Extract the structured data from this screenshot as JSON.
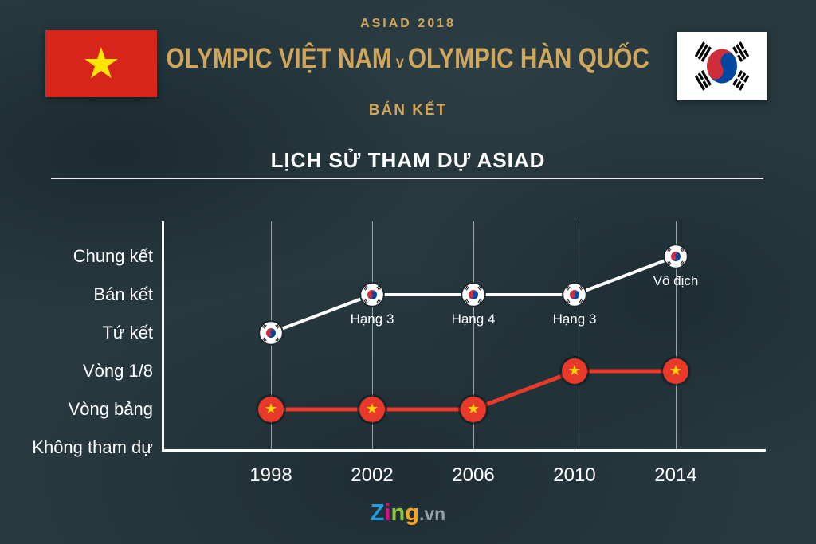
{
  "header": {
    "event": "ASIAD 2018",
    "team_home": "OLYMPIC VIỆT NAM",
    "versus": "v",
    "team_away": "OLYMPIC HÀN QUỐC",
    "stage": "BÁN KẾT"
  },
  "flags": {
    "home": "vietnam-flag",
    "away": "south-korea-flag"
  },
  "chart_data": {
    "type": "line",
    "title": "LỊCH SỬ THAM DỰ ASIAD",
    "x": [
      1998,
      2002,
      2006,
      2010,
      2014
    ],
    "y_categories": [
      "Chung kết",
      "Bán kết",
      "Tứ kết",
      "Vòng 1/8",
      "Vòng bảng",
      "Không tham dự"
    ],
    "grid": true,
    "legend": "none",
    "series": [
      {
        "name": "Olympic Hàn Quốc",
        "color": "#ffffff",
        "marker": "south-korea-flag-marker",
        "values": [
          "Tứ kết",
          "Bán kết",
          "Bán kết",
          "Bán kết",
          "Chung kết"
        ],
        "point_labels": [
          "",
          "Hạng 3",
          "Hạng 4",
          "Hạng 3",
          "Vô địch"
        ]
      },
      {
        "name": "Olympic Việt Nam",
        "color": "#e8392b",
        "marker": "vietnam-star-marker",
        "values": [
          "Vòng bảng",
          "Vòng bảng",
          "Vòng bảng",
          "Vòng 1/8",
          "Vòng 1/8"
        ],
        "point_labels": [
          "",
          "",
          "",
          "",
          ""
        ]
      }
    ]
  },
  "footer": {
    "logo_letters": [
      {
        "ch": "Z",
        "color": "#1e9de0"
      },
      {
        "ch": "i",
        "color": "#ec008c"
      },
      {
        "ch": "n",
        "color": "#8dc63f"
      },
      {
        "ch": "g",
        "color": "#f9a51a"
      }
    ],
    "logo_suffix": ".vn",
    "logo_suffix_color": "#93a1a8"
  },
  "colors": {
    "background": "#27393f",
    "gold": "#cfa65b",
    "korea_line": "#ffffff",
    "vietnam_line": "#e8392b",
    "star_yellow": "#ffd400"
  }
}
